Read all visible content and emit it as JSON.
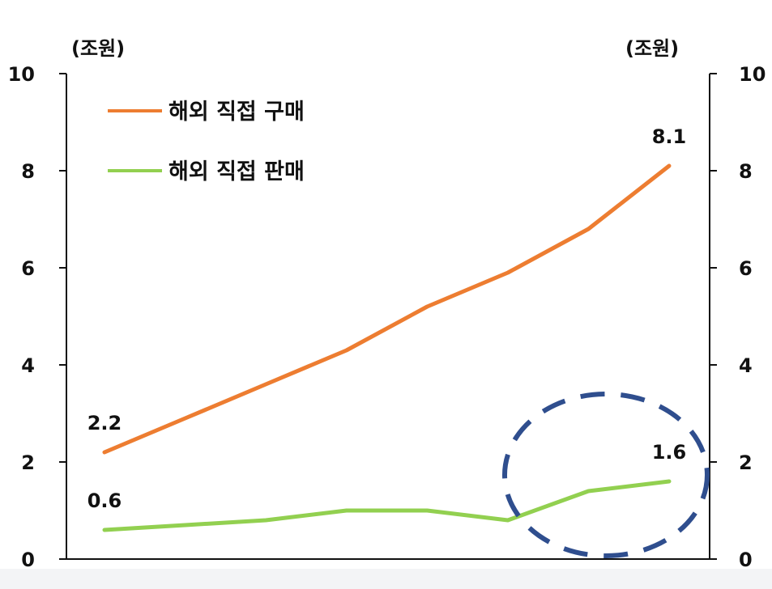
{
  "chart_data": {
    "type": "line",
    "left_unit": "(조원)",
    "right_unit": "(조원)",
    "ylim": [
      0,
      10
    ],
    "yticks": [
      "0",
      "2",
      "4",
      "6",
      "8",
      "10"
    ],
    "grid": false,
    "legend_position": "top-left",
    "series": [
      {
        "name": "해외 직접 구매",
        "color": "#ED7D31",
        "values": [
          2.2,
          2.9,
          3.6,
          4.3,
          5.2,
          5.9,
          6.8,
          8.1
        ]
      },
      {
        "name": "해외 직접 판매",
        "color": "#92D050",
        "values": [
          0.6,
          0.7,
          0.8,
          1.0,
          1.0,
          0.8,
          1.4,
          1.6
        ]
      }
    ],
    "data_labels": [
      {
        "series": 0,
        "index": 0,
        "text": "2.2"
      },
      {
        "series": 0,
        "index": 7,
        "text": "8.1"
      },
      {
        "series": 1,
        "index": 0,
        "text": "0.6"
      },
      {
        "series": 1,
        "index": 7,
        "text": "1.6"
      }
    ],
    "highlight": {
      "from_index": 6,
      "to_index": 7,
      "color": "#2F4E8E"
    }
  }
}
